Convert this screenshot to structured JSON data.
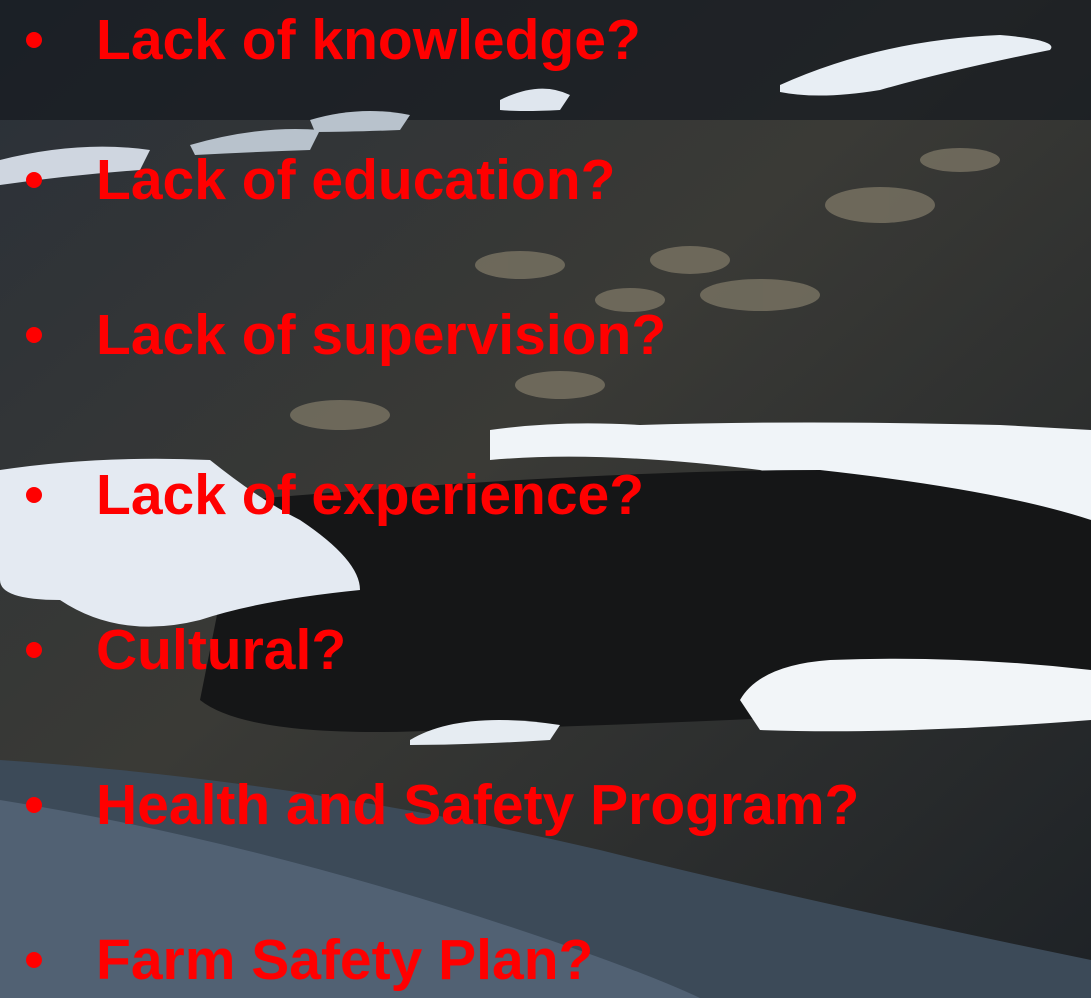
{
  "bullets": [
    "Lack of knowledge?",
    "Lack of education?",
    "Lack of supervision?",
    "Lack of experience?",
    "Cultural?",
    "Health and Safety Program?",
    "Farm Safety Plan?"
  ]
}
